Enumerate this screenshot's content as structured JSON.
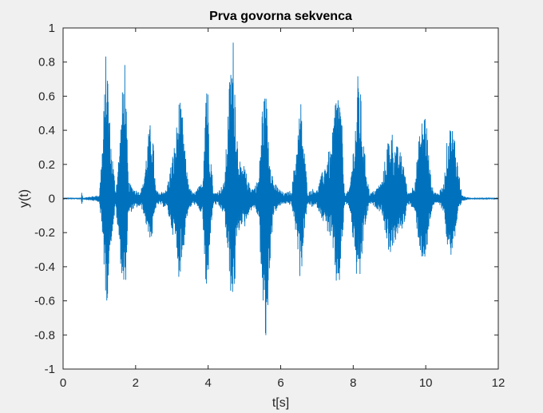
{
  "chart_data": {
    "type": "line",
    "title": "Prva govorna sekvenca",
    "xlabel": "t[s]",
    "ylabel": "y(t)",
    "xlim": [
      0,
      12
    ],
    "ylim": [
      -1,
      1
    ],
    "xticks": [
      0,
      2,
      4,
      6,
      8,
      10,
      12
    ],
    "xtick_labels": [
      "0",
      "2",
      "4",
      "6",
      "8",
      "10",
      "12"
    ],
    "yticks": [
      -1,
      -0.8,
      -0.6,
      -0.4,
      -0.2,
      0,
      0.2,
      0.4,
      0.6,
      0.8,
      1
    ],
    "ytick_labels": [
      "-1",
      "-0.8",
      "-0.6",
      "-0.4",
      "-0.2",
      "0",
      "0.2",
      "0.4",
      "0.6",
      "0.8",
      "1"
    ],
    "grid": false,
    "line_color": "#0072BD",
    "background_color": "#ffffff",
    "series": [
      {
        "x": [
          0,
          0.5,
          0.52,
          0.54,
          1.0,
          1.1,
          1.2,
          1.3,
          1.45,
          1.55,
          1.7,
          1.75,
          1.8,
          1.95,
          2.1,
          2.2,
          2.35,
          2.45,
          2.55,
          2.65,
          2.75,
          2.85,
          3.1,
          3.2,
          3.3,
          3.4,
          3.5,
          3.6,
          3.85,
          3.95,
          4.05,
          4.15,
          4.3,
          4.45,
          4.6,
          4.7,
          4.8,
          4.9,
          5.0,
          5.1,
          5.25,
          5.4,
          5.5,
          5.6,
          5.7,
          5.8,
          5.95,
          6.1,
          6.3,
          6.45,
          6.55,
          6.65,
          6.75,
          6.85,
          7.0,
          7.3,
          7.4,
          7.5,
          7.6,
          7.7,
          7.75,
          7.8,
          7.9,
          8.05,
          8.15,
          8.3,
          8.45,
          8.6,
          8.8,
          8.95,
          9.05,
          9.15,
          9.25,
          9.4,
          9.5,
          9.6,
          9.7,
          9.85,
          10.0,
          10.1,
          10.2,
          10.35,
          10.5,
          10.6,
          10.7,
          10.8,
          10.9,
          11.0,
          11.1,
          11.2,
          11.5,
          12.0
        ],
        "upper": [
          0.005,
          0.005,
          0.05,
          0.005,
          0.02,
          0.4,
          0.97,
          0.4,
          0.05,
          0.3,
          0.88,
          0.48,
          0.1,
          0.06,
          0.04,
          0.08,
          0.38,
          0.5,
          0.06,
          0.03,
          0.05,
          0.05,
          0.36,
          0.6,
          0.48,
          0.18,
          0.06,
          0.03,
          0.1,
          0.89,
          0.35,
          0.03,
          0.05,
          0.1,
          0.75,
          0.98,
          0.4,
          0.18,
          0.2,
          0.1,
          0.06,
          0.13,
          0.6,
          0.62,
          0.3,
          0.1,
          0.06,
          0.03,
          0.05,
          0.35,
          0.6,
          0.3,
          0.03,
          0.06,
          0.05,
          0.27,
          0.3,
          0.6,
          0.7,
          0.4,
          0.06,
          0.03,
          0.06,
          0.43,
          0.81,
          0.3,
          0.03,
          0.05,
          0.11,
          0.35,
          0.42,
          0.33,
          0.3,
          0.22,
          0.03,
          0.05,
          0.11,
          0.43,
          0.55,
          0.2,
          0.05,
          0.03,
          0.09,
          0.38,
          0.45,
          0.38,
          0.18,
          0.02,
          0.01,
          0.005,
          0.005,
          0.005
        ],
        "lower": [
          -0.005,
          -0.005,
          -0.05,
          -0.005,
          -0.02,
          -0.3,
          -0.66,
          -0.3,
          -0.05,
          -0.3,
          -0.64,
          -0.37,
          -0.1,
          -0.06,
          -0.05,
          -0.07,
          -0.22,
          -0.25,
          -0.06,
          -0.03,
          -0.05,
          -0.05,
          -0.28,
          -0.48,
          -0.36,
          -0.12,
          -0.06,
          -0.03,
          -0.1,
          -0.7,
          -0.25,
          -0.03,
          -0.05,
          -0.1,
          -0.53,
          -0.66,
          -0.25,
          -0.15,
          -0.18,
          -0.1,
          -0.05,
          -0.12,
          -0.66,
          -0.93,
          -0.4,
          -0.1,
          -0.05,
          -0.03,
          -0.04,
          -0.25,
          -0.52,
          -0.2,
          -0.03,
          -0.05,
          -0.05,
          -0.2,
          -0.25,
          -0.5,
          -0.56,
          -0.3,
          -0.05,
          -0.03,
          -0.06,
          -0.36,
          -0.63,
          -0.2,
          -0.03,
          -0.05,
          -0.09,
          -0.3,
          -0.33,
          -0.26,
          -0.22,
          -0.16,
          -0.03,
          -0.05,
          -0.09,
          -0.33,
          -0.42,
          -0.15,
          -0.04,
          -0.03,
          -0.08,
          -0.3,
          -0.34,
          -0.25,
          -0.1,
          -0.02,
          -0.01,
          -0.005,
          -0.005,
          -0.005
        ]
      }
    ]
  }
}
